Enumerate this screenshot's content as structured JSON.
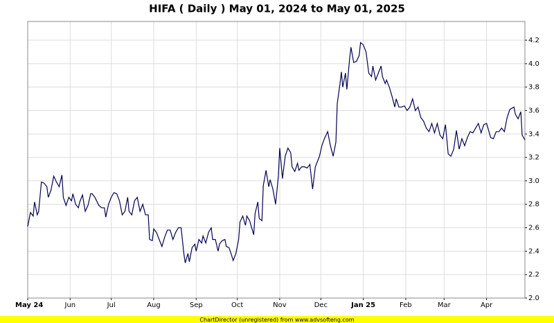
{
  "chart_data": {
    "type": "line",
    "title": "HIFA ( Daily ) May 01, 2024 to May 01, 2025",
    "x": [
      0,
      2,
      4,
      5,
      7,
      8,
      10,
      12,
      14,
      15,
      17,
      19,
      21,
      23,
      25,
      26,
      28,
      30,
      32,
      33,
      35,
      37,
      38,
      40,
      42,
      44,
      46,
      47,
      49,
      52,
      54,
      56,
      57,
      59,
      61,
      63,
      65,
      67,
      69,
      71,
      73,
      74,
      76,
      78,
      80,
      82,
      84,
      86,
      88,
      89,
      91,
      92,
      94,
      96,
      98,
      100,
      102,
      104,
      106,
      108,
      110,
      112,
      114,
      115,
      117,
      118,
      120,
      122,
      123,
      125,
      127,
      128,
      130,
      132,
      134,
      135,
      137,
      139,
      140,
      142,
      144,
      145,
      147,
      149,
      150,
      152,
      154,
      155,
      157,
      159,
      160,
      162,
      163,
      165,
      166,
      168,
      169,
      171,
      172,
      174,
      176,
      177,
      179,
      181,
      183,
      184,
      186,
      188,
      190,
      192,
      193,
      195,
      197,
      198,
      200,
      202,
      204,
      206,
      208,
      210,
      212,
      213,
      215,
      217,
      219,
      221,
      223,
      225,
      226,
      228,
      229,
      230,
      232,
      233,
      235,
      236,
      238,
      240,
      242,
      243,
      245,
      247,
      249,
      251,
      252,
      254,
      256,
      258,
      259,
      261,
      262,
      264,
      266,
      268,
      269,
      271,
      273,
      275,
      277,
      279,
      281,
      283,
      285,
      287,
      289,
      291,
      293,
      295,
      297,
      299,
      301,
      303,
      305,
      307,
      309,
      311,
      313,
      315,
      317,
      319,
      321,
      323,
      325,
      327,
      329,
      331,
      333,
      335,
      336,
      338,
      340,
      342,
      344,
      346,
      348,
      350,
      352,
      355,
      356,
      358,
      360,
      361,
      363
    ],
    "series": [
      {
        "color": "#000050",
        "values": [
          2.61,
          2.73,
          2.7,
          2.82,
          2.71,
          2.74,
          2.99,
          2.98,
          2.95,
          2.86,
          2.92,
          3.04,
          2.99,
          2.95,
          3.05,
          2.86,
          2.79,
          2.86,
          2.83,
          2.89,
          2.8,
          2.77,
          2.82,
          2.88,
          2.74,
          2.79,
          2.89,
          2.89,
          2.86,
          2.79,
          2.77,
          2.77,
          2.69,
          2.8,
          2.86,
          2.9,
          2.89,
          2.83,
          2.71,
          2.74,
          2.86,
          2.74,
          2.71,
          2.83,
          2.86,
          2.74,
          2.8,
          2.71,
          2.71,
          2.5,
          2.49,
          2.59,
          2.56,
          2.5,
          2.44,
          2.52,
          2.58,
          2.58,
          2.5,
          2.56,
          2.6,
          2.6,
          2.38,
          2.3,
          2.38,
          2.31,
          2.43,
          2.46,
          2.4,
          2.5,
          2.47,
          2.53,
          2.47,
          2.56,
          2.6,
          2.5,
          2.5,
          2.4,
          2.46,
          2.49,
          2.5,
          2.44,
          2.43,
          2.36,
          2.32,
          2.38,
          2.5,
          2.65,
          2.7,
          2.62,
          2.7,
          2.66,
          2.62,
          2.54,
          2.72,
          2.82,
          2.68,
          2.66,
          2.96,
          3.09,
          2.95,
          3.01,
          2.93,
          2.8,
          3.04,
          3.28,
          3.02,
          3.21,
          3.28,
          3.24,
          3.12,
          3.08,
          3.15,
          3.09,
          3.12,
          3.12,
          3.11,
          3.14,
          2.93,
          3.12,
          3.18,
          3.21,
          3.31,
          3.37,
          3.42,
          3.3,
          3.21,
          3.33,
          3.66,
          3.83,
          3.93,
          3.8,
          3.92,
          3.78,
          4.04,
          4.14,
          4.01,
          4.02,
          4.07,
          4.18,
          4.16,
          4.1,
          3.92,
          3.89,
          3.98,
          3.86,
          3.92,
          3.98,
          3.89,
          3.83,
          3.86,
          3.8,
          3.72,
          3.63,
          3.7,
          3.63,
          3.63,
          3.64,
          3.6,
          3.63,
          3.7,
          3.6,
          3.63,
          3.54,
          3.51,
          3.45,
          3.42,
          3.49,
          3.41,
          3.49,
          3.39,
          3.36,
          3.48,
          3.23,
          3.21,
          3.27,
          3.43,
          3.27,
          3.36,
          3.3,
          3.37,
          3.42,
          3.41,
          3.45,
          3.49,
          3.41,
          3.48,
          3.49,
          3.45,
          3.37,
          3.36,
          3.42,
          3.42,
          3.45,
          3.42,
          3.54,
          3.61,
          3.63,
          3.57,
          3.53,
          3.59,
          3.39,
          3.35
        ]
      }
    ],
    "xlim": [
      0,
      363
    ],
    "xticks": [
      {
        "value": 0,
        "label": "May 24"
      },
      {
        "value": 31,
        "label": "Jun"
      },
      {
        "value": 61,
        "label": "Jul"
      },
      {
        "value": 92,
        "label": "Aug"
      },
      {
        "value": 123,
        "label": "Sep"
      },
      {
        "value": 153,
        "label": "Oct"
      },
      {
        "value": 184,
        "label": "Nov"
      },
      {
        "value": 214,
        "label": "Dec"
      },
      {
        "value": 245,
        "label": "Jan 25"
      },
      {
        "value": 276,
        "label": "Feb"
      },
      {
        "value": 304,
        "label": "Mar"
      },
      {
        "value": 335,
        "label": "Apr"
      }
    ],
    "ylim": [
      2.0,
      4.36
    ],
    "yticks": [
      {
        "value": 2,
        "label": "2.0"
      },
      2.2,
      2.4,
      2.6,
      2.8,
      {
        "value": 3,
        "label": "3.0"
      },
      3.2,
      3.4,
      3.6,
      3.8,
      {
        "value": 4,
        "label": "4.0"
      },
      4.2
    ],
    "grid": true
  },
  "footer": "ChartDirector (unregistered) from www.advsofteng.com"
}
